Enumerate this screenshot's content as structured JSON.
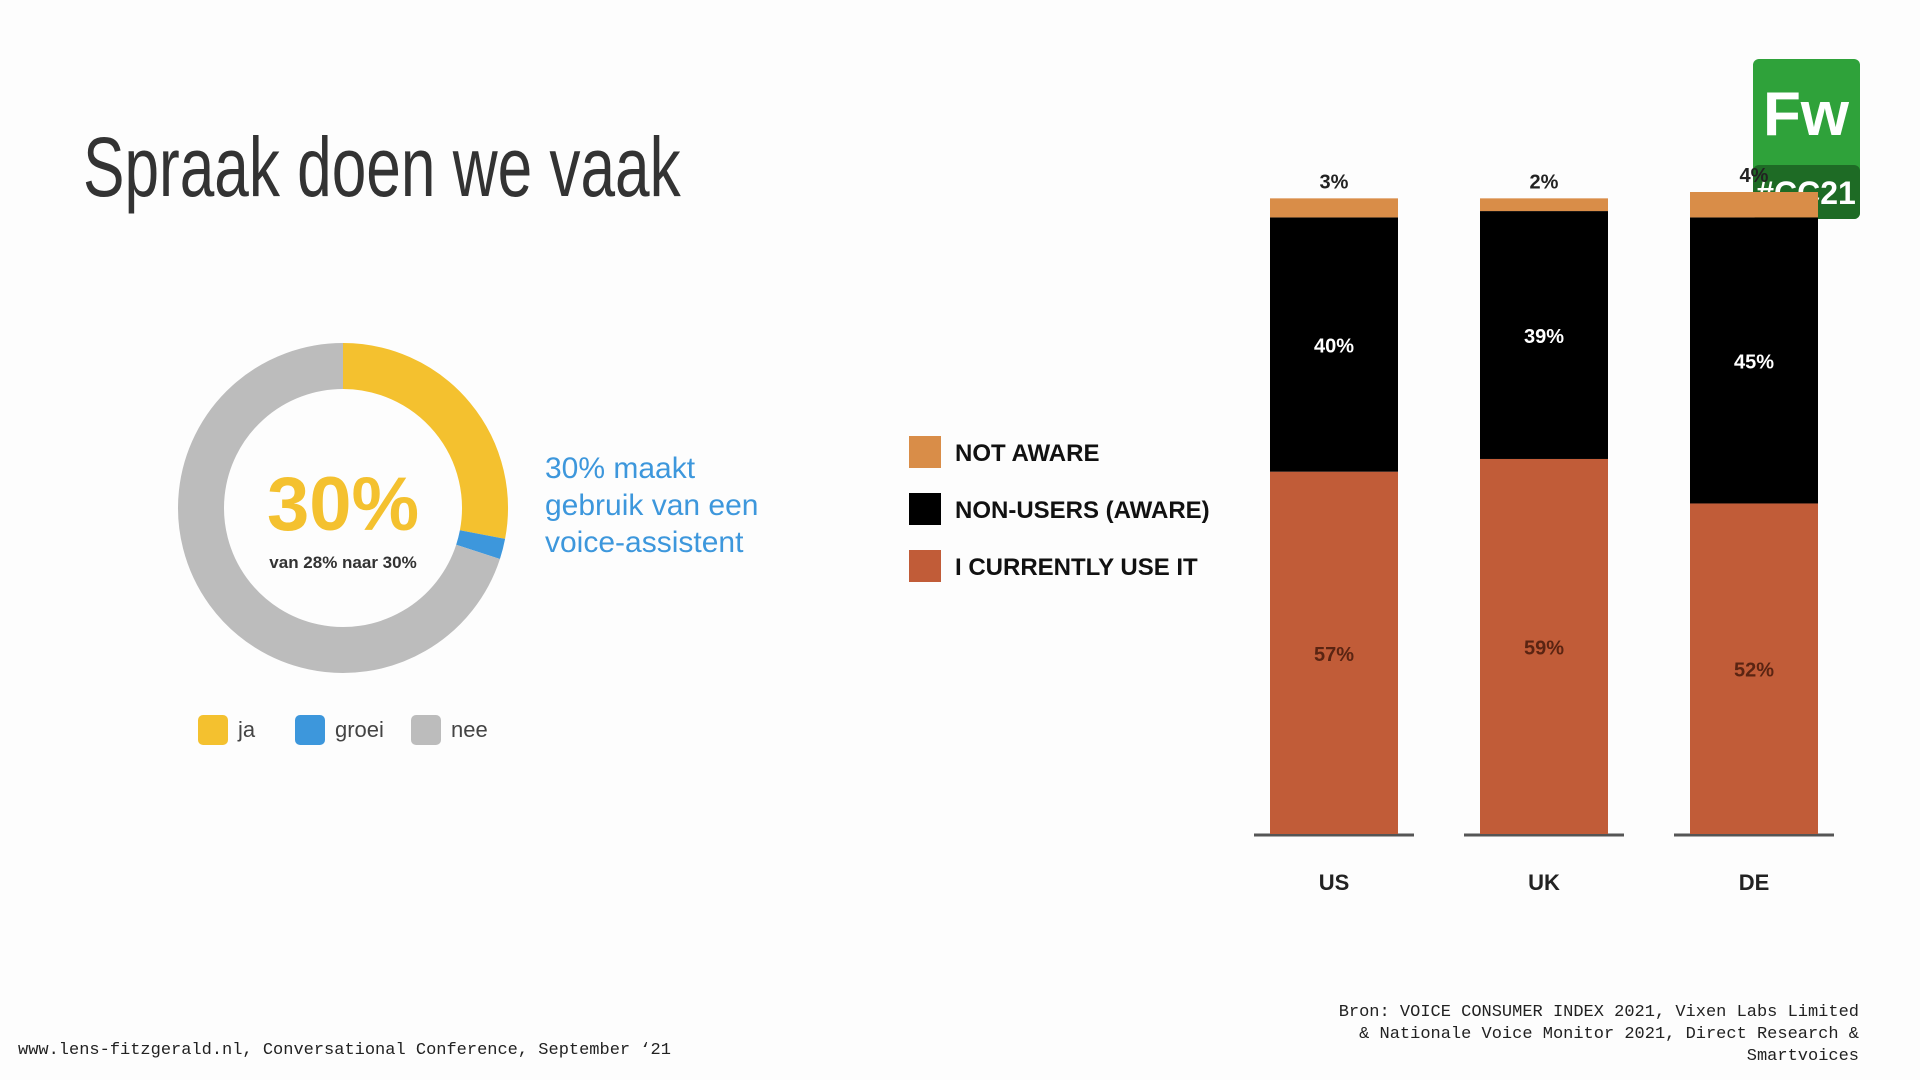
{
  "title": "Spraak doen we vaak",
  "logo": {
    "top": "Fw",
    "bottom": "#CC21"
  },
  "footer": "www.lens-fitzgerald.nl, Conversational Conference, September ‘21",
  "source": [
    "Bron: VOICE CONSUMER INDEX 2021,  Vixen Labs Limited",
    "& Nationale Voice Monitor 2021, Direct Research &",
    "Smartvoices"
  ],
  "chart_data": [
    {
      "type": "donut",
      "categories": [
        "ja",
        "groei",
        "nee"
      ],
      "values": [
        28,
        2,
        70
      ],
      "colors": [
        "#f4c12f",
        "#3d97dc",
        "#bcbcbc"
      ],
      "center_label": "30%",
      "center_sublabel": "van 28% naar 30%",
      "annotation": [
        "30% maakt",
        "gebruik van een",
        "voice-assistent"
      ]
    },
    {
      "type": "stacked-bar",
      "categories": [
        "US",
        "UK",
        "DE"
      ],
      "series": [
        {
          "name": "I CURRENTLY USE IT",
          "color": "#c15c38",
          "values": [
            57,
            59,
            52
          ],
          "value_labels": [
            "57%",
            "59%",
            "52%"
          ]
        },
        {
          "name": "NON-USERS (AWARE)",
          "color": "#000000",
          "values": [
            40,
            39,
            45
          ],
          "value_labels": [
            "40%",
            "39%",
            "45%"
          ]
        },
        {
          "name": "NOT AWARE",
          "color": "#d98d48",
          "values": [
            3,
            2,
            4
          ],
          "value_labels": [
            "3%",
            "2%",
            "4%"
          ]
        }
      ]
    }
  ]
}
